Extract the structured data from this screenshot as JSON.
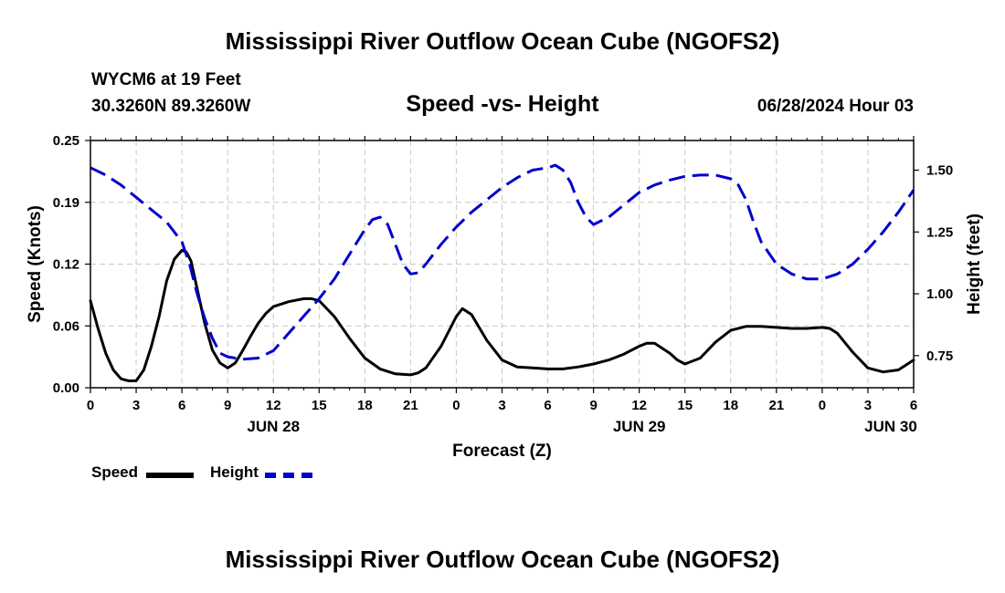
{
  "header": {
    "title": "Mississippi River Outflow Ocean Cube (NGOFS2)",
    "station": "WYCM6 at 19 Feet",
    "coordinates": "30.3260N  89.3260W",
    "subtitle": "Speed -vs- Height",
    "datetime": "06/28/2024 Hour 03"
  },
  "footer": {
    "title": "Mississippi River Outflow Ocean Cube (NGOFS2)"
  },
  "legend": {
    "speed_label": "Speed",
    "height_label": "Height"
  },
  "colors": {
    "speed": "#000000",
    "height": "#0000cc",
    "grid": "#c8c8c8"
  },
  "chart_data": {
    "type": "line",
    "title": "Speed -vs- Height",
    "xlabel": "Forecast (Z)",
    "ylabel_left": "Speed (Knots)",
    "ylabel_right": "Height (feet)",
    "xlim_hours": [
      0,
      54
    ],
    "ylim_left": [
      0,
      0.25
    ],
    "ylim_right": [
      0.62,
      1.62
    ],
    "left_ticks": [
      "0.00",
      "0.06",
      "0.12",
      "0.19",
      "0.25"
    ],
    "left_tick_values": [
      0,
      0.0625,
      0.125,
      0.1875,
      0.25
    ],
    "right_ticks": [
      "0.75",
      "1.00",
      "1.25",
      "1.50"
    ],
    "right_tick_values": [
      0.75,
      1.0,
      1.25,
      1.5
    ],
    "x_tick_labels": [
      "0",
      "3",
      "6",
      "9",
      "12",
      "15",
      "18",
      "21",
      "0",
      "3",
      "6",
      "9",
      "12",
      "15",
      "18",
      "21",
      "0",
      "3",
      "6"
    ],
    "day_labels": [
      {
        "label": "JUN 28",
        "hour": 12
      },
      {
        "label": "JUN 29",
        "hour": 36
      },
      {
        "label": "JUN 30",
        "hour": 52.5
      }
    ],
    "grid": true,
    "series": [
      {
        "name": "Speed",
        "axis": "left",
        "style": "solid",
        "x": [
          0,
          0.5,
          1,
          1.5,
          2,
          2.5,
          3,
          3.5,
          4,
          4.5,
          5,
          5.5,
          6,
          6.3,
          6.6,
          7,
          7.5,
          8,
          8.5,
          9,
          9.5,
          10,
          10.5,
          11,
          11.5,
          12,
          13,
          14,
          14.5,
          15,
          16,
          17,
          18,
          19,
          20,
          21,
          21.5,
          22,
          23,
          24,
          24.4,
          25,
          26,
          27,
          28,
          29,
          30,
          31,
          32,
          33,
          34,
          35,
          36,
          36.5,
          37,
          38,
          38.5,
          39,
          40,
          41,
          42,
          43,
          44,
          45,
          46,
          47,
          48,
          48.5,
          49,
          50,
          51,
          52,
          53,
          54
        ],
        "values": [
          0.088,
          0.06,
          0.035,
          0.018,
          0.009,
          0.007,
          0.007,
          0.018,
          0.042,
          0.072,
          0.108,
          0.13,
          0.139,
          0.137,
          0.128,
          0.1,
          0.065,
          0.038,
          0.025,
          0.02,
          0.025,
          0.038,
          0.052,
          0.065,
          0.075,
          0.082,
          0.087,
          0.09,
          0.09,
          0.088,
          0.072,
          0.05,
          0.03,
          0.019,
          0.014,
          0.013,
          0.015,
          0.02,
          0.042,
          0.072,
          0.08,
          0.074,
          0.048,
          0.028,
          0.021,
          0.02,
          0.019,
          0.019,
          0.021,
          0.024,
          0.028,
          0.034,
          0.042,
          0.045,
          0.045,
          0.035,
          0.028,
          0.024,
          0.03,
          0.046,
          0.058,
          0.062,
          0.062,
          0.061,
          0.06,
          0.06,
          0.061,
          0.06,
          0.055,
          0.036,
          0.02,
          0.016,
          0.018,
          0.028
        ]
      },
      {
        "name": "Height",
        "axis": "right",
        "style": "dashed",
        "x": [
          0,
          1,
          2,
          3,
          4,
          5,
          6,
          6.5,
          7,
          7.5,
          8,
          8.5,
          9,
          9.5,
          10,
          11,
          12,
          13,
          14,
          15,
          16,
          17,
          18,
          18.5,
          19,
          19.5,
          20,
          20.5,
          21,
          21.5,
          22,
          23,
          24,
          25,
          26,
          27,
          28,
          29,
          30,
          30.5,
          31,
          31.5,
          32,
          32.5,
          33,
          34,
          35,
          36,
          37,
          38,
          39,
          40,
          41,
          42,
          42.5,
          43,
          43.5,
          44,
          45,
          46,
          47,
          48,
          49,
          50,
          51,
          52,
          53,
          54
        ],
        "values": [
          1.51,
          1.48,
          1.44,
          1.39,
          1.34,
          1.29,
          1.21,
          1.12,
          1.0,
          0.9,
          0.82,
          0.76,
          0.745,
          0.74,
          0.735,
          0.74,
          0.77,
          0.84,
          0.91,
          0.98,
          1.06,
          1.16,
          1.26,
          1.3,
          1.31,
          1.28,
          1.2,
          1.12,
          1.08,
          1.085,
          1.12,
          1.2,
          1.27,
          1.33,
          1.38,
          1.43,
          1.47,
          1.5,
          1.51,
          1.52,
          1.5,
          1.45,
          1.37,
          1.31,
          1.28,
          1.31,
          1.36,
          1.41,
          1.44,
          1.46,
          1.475,
          1.48,
          1.48,
          1.465,
          1.44,
          1.38,
          1.29,
          1.21,
          1.12,
          1.08,
          1.06,
          1.06,
          1.08,
          1.12,
          1.18,
          1.25,
          1.33,
          1.42
        ]
      }
    ]
  }
}
